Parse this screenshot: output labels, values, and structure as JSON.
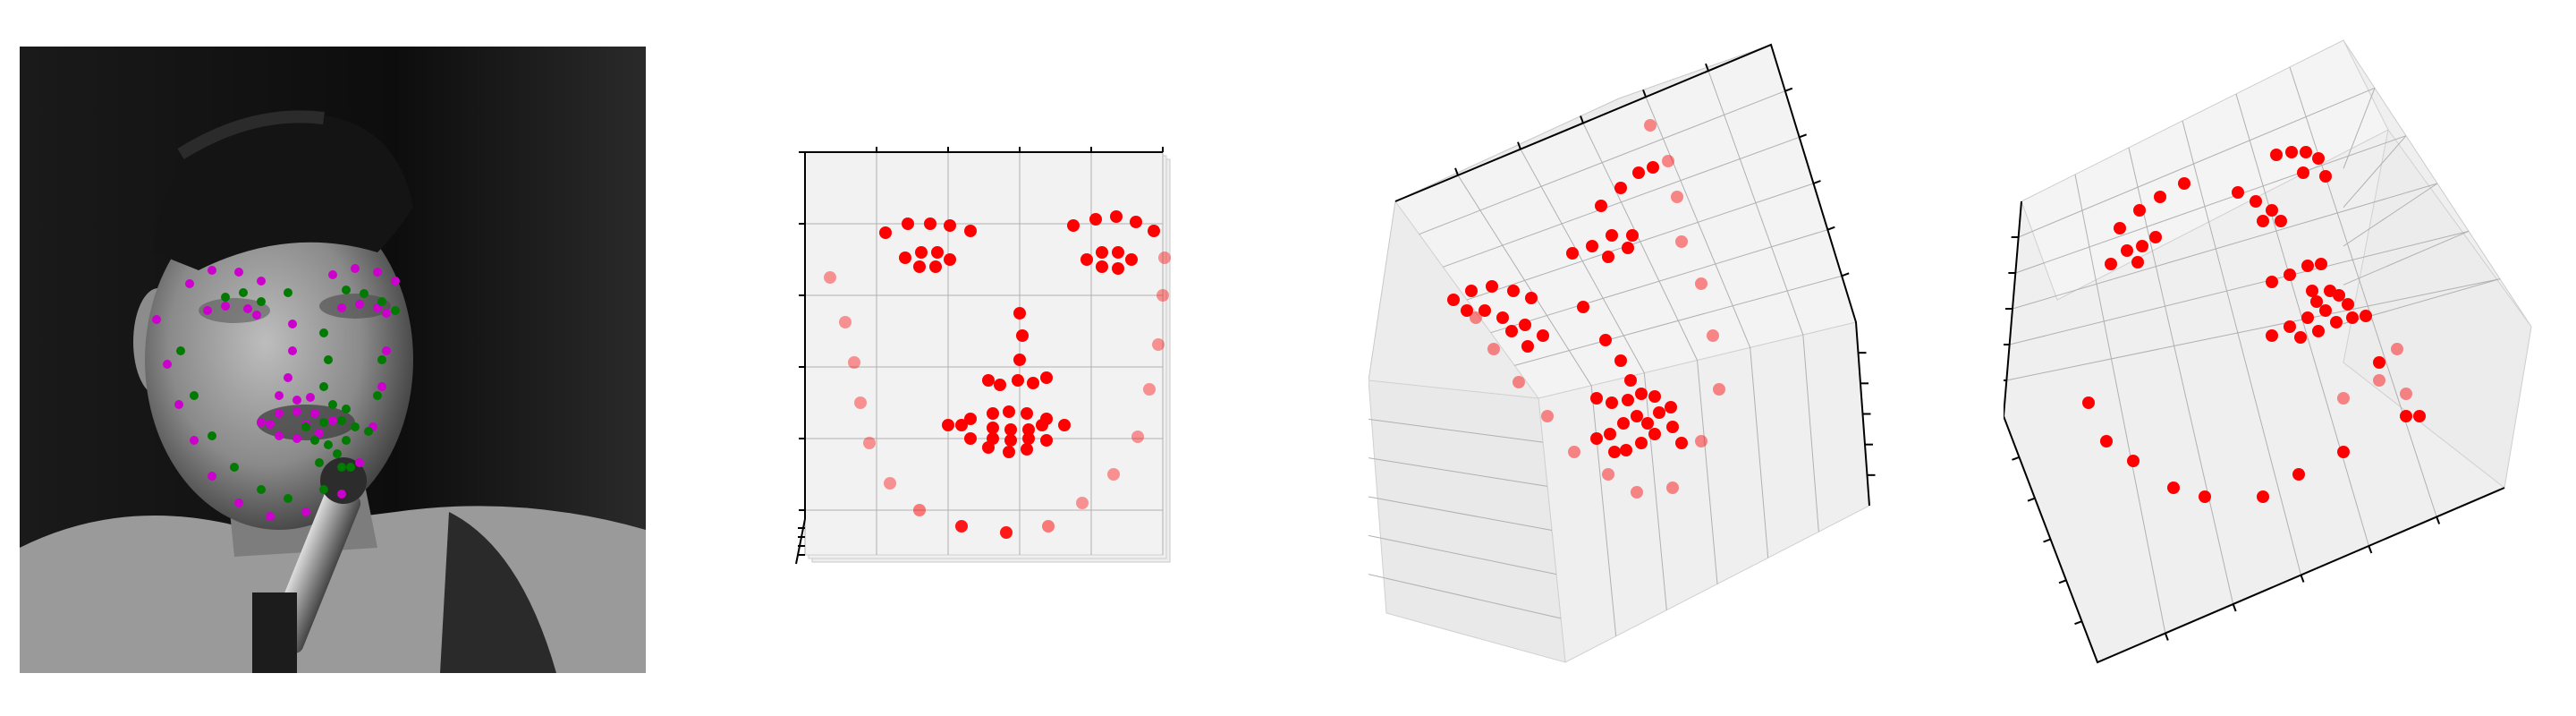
{
  "figure": {
    "panels": [
      {
        "id": "photo",
        "type": "grayscale photo with overlaid 2D facial landmarks"
      },
      {
        "id": "front",
        "type": "3D scatter of landmarks, frontal view"
      },
      {
        "id": "oblique",
        "type": "3D scatter of landmarks, oblique view"
      },
      {
        "id": "rotated",
        "type": "3D scatter of landmarks, rotated view"
      }
    ],
    "colors": {
      "landmark_set_a": "#cc00cc",
      "landmark_set_b": "#007a00",
      "point_3d": "#ff0000",
      "pane": "#f2f2f2",
      "grid": "#b0b0b0",
      "axis": "#000000"
    },
    "icons": [
      "microphone",
      "cap"
    ]
  }
}
